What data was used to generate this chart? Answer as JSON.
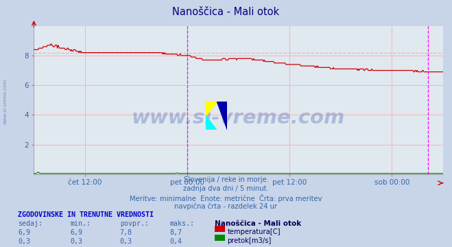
{
  "title": "Nanoščica - Mali otok",
  "title_color": "#000080",
  "bg_color": "#c8d4e8",
  "plot_bg_color": "#e0e8f0",
  "grid_color": "#ffaaaa",
  "xlabel_ticks": [
    "čet 12:00",
    "pet 00:00",
    "pet 12:00",
    "sob 00:00"
  ],
  "xlabel_tick_positions": [
    0.125,
    0.375,
    0.625,
    0.875
  ],
  "ylim": [
    0,
    10
  ],
  "yticks": [
    2,
    4,
    6,
    8
  ],
  "temp_color": "#cc0000",
  "pretok_color": "#008800",
  "dashed_color": "#ffaaaa",
  "magenta_line1": 0.375,
  "magenta_line2": 0.963,
  "avg_temp": 8.2,
  "watermark_text": "www.si-vreme.com",
  "watermark_color": "#3355aa",
  "sidebar_text": "www.si-vreme.com",
  "sidebar_color": "#3355aa",
  "footer_line1": "Slovenija / reke in morje.",
  "footer_line2": "zadnja dva dni / 5 minut.",
  "footer_line3": "Meritve: minimalne  Enote: metrične  Črta: prva meritev",
  "footer_line4": "navpična črta - razdelek 24 ur",
  "footer_color": "#3366aa",
  "table_header": "ZGODOVINSKE IN TRENUTNE VREDNOSTI",
  "table_cols": [
    "sedaj:",
    "min.:",
    "povpr.:",
    "maks.:"
  ],
  "table_temp": [
    "6,9",
    "6,9",
    "7,8",
    "8,7"
  ],
  "table_pretok": [
    "0,3",
    "0,3",
    "0,3",
    "0,4"
  ],
  "legend_title": "Nanoščica - Mali otok",
  "legend_temp": "temperatura[C]",
  "legend_pretok": "pretok[m3/s]",
  "text_color": "#3366aa"
}
